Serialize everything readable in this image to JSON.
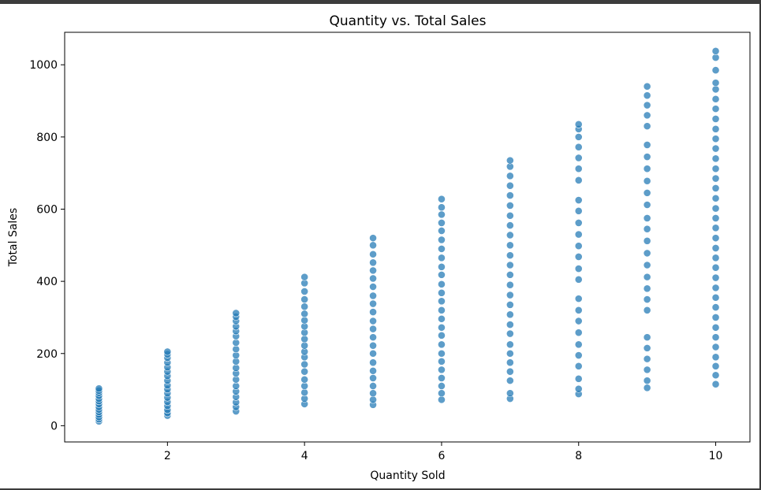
{
  "chart_data": {
    "type": "scatter",
    "title": "Quantity vs. Total Sales",
    "xlabel": "Quantity Sold",
    "ylabel": "Total Sales",
    "xlim": [
      0.5,
      10.5
    ],
    "ylim": [
      -45,
      1090
    ],
    "xticks": [
      2,
      4,
      6,
      8,
      10
    ],
    "yticks": [
      0,
      200,
      400,
      600,
      800,
      1000
    ],
    "grid": false,
    "marker_color": "#1f77b4",
    "series": [
      {
        "points": [
          {
            "x": 1,
            "y": 12
          },
          {
            "x": 1,
            "y": 18
          },
          {
            "x": 1,
            "y": 24
          },
          {
            "x": 1,
            "y": 31
          },
          {
            "x": 1,
            "y": 38
          },
          {
            "x": 1,
            "y": 45
          },
          {
            "x": 1,
            "y": 52
          },
          {
            "x": 1,
            "y": 60
          },
          {
            "x": 1,
            "y": 68
          },
          {
            "x": 1,
            "y": 75
          },
          {
            "x": 1,
            "y": 83
          },
          {
            "x": 1,
            "y": 91
          },
          {
            "x": 1,
            "y": 97
          },
          {
            "x": 1,
            "y": 103
          },
          {
            "x": 2,
            "y": 28
          },
          {
            "x": 2,
            "y": 35
          },
          {
            "x": 2,
            "y": 44
          },
          {
            "x": 2,
            "y": 55
          },
          {
            "x": 2,
            "y": 66
          },
          {
            "x": 2,
            "y": 78
          },
          {
            "x": 2,
            "y": 90
          },
          {
            "x": 2,
            "y": 101
          },
          {
            "x": 2,
            "y": 112
          },
          {
            "x": 2,
            "y": 125
          },
          {
            "x": 2,
            "y": 138
          },
          {
            "x": 2,
            "y": 150
          },
          {
            "x": 2,
            "y": 162
          },
          {
            "x": 2,
            "y": 175
          },
          {
            "x": 2,
            "y": 188
          },
          {
            "x": 2,
            "y": 198
          },
          {
            "x": 2,
            "y": 205
          },
          {
            "x": 3,
            "y": 40
          },
          {
            "x": 3,
            "y": 52
          },
          {
            "x": 3,
            "y": 65
          },
          {
            "x": 3,
            "y": 80
          },
          {
            "x": 3,
            "y": 95
          },
          {
            "x": 3,
            "y": 110
          },
          {
            "x": 3,
            "y": 128
          },
          {
            "x": 3,
            "y": 145
          },
          {
            "x": 3,
            "y": 160
          },
          {
            "x": 3,
            "y": 178
          },
          {
            "x": 3,
            "y": 195
          },
          {
            "x": 3,
            "y": 212
          },
          {
            "x": 3,
            "y": 230
          },
          {
            "x": 3,
            "y": 248
          },
          {
            "x": 3,
            "y": 262
          },
          {
            "x": 3,
            "y": 275
          },
          {
            "x": 3,
            "y": 290
          },
          {
            "x": 3,
            "y": 302
          },
          {
            "x": 3,
            "y": 312
          },
          {
            "x": 4,
            "y": 60
          },
          {
            "x": 4,
            "y": 75
          },
          {
            "x": 4,
            "y": 92
          },
          {
            "x": 4,
            "y": 110
          },
          {
            "x": 4,
            "y": 128
          },
          {
            "x": 4,
            "y": 150
          },
          {
            "x": 4,
            "y": 170
          },
          {
            "x": 4,
            "y": 190
          },
          {
            "x": 4,
            "y": 205
          },
          {
            "x": 4,
            "y": 222
          },
          {
            "x": 4,
            "y": 240
          },
          {
            "x": 4,
            "y": 258
          },
          {
            "x": 4,
            "y": 275
          },
          {
            "x": 4,
            "y": 292
          },
          {
            "x": 4,
            "y": 310
          },
          {
            "x": 4,
            "y": 330
          },
          {
            "x": 4,
            "y": 350
          },
          {
            "x": 4,
            "y": 372
          },
          {
            "x": 4,
            "y": 395
          },
          {
            "x": 4,
            "y": 412
          },
          {
            "x": 5,
            "y": 58
          },
          {
            "x": 5,
            "y": 72
          },
          {
            "x": 5,
            "y": 90
          },
          {
            "x": 5,
            "y": 110
          },
          {
            "x": 5,
            "y": 132
          },
          {
            "x": 5,
            "y": 152
          },
          {
            "x": 5,
            "y": 175
          },
          {
            "x": 5,
            "y": 200
          },
          {
            "x": 5,
            "y": 222
          },
          {
            "x": 5,
            "y": 245
          },
          {
            "x": 5,
            "y": 268
          },
          {
            "x": 5,
            "y": 290
          },
          {
            "x": 5,
            "y": 315
          },
          {
            "x": 5,
            "y": 338
          },
          {
            "x": 5,
            "y": 360
          },
          {
            "x": 5,
            "y": 385
          },
          {
            "x": 5,
            "y": 408
          },
          {
            "x": 5,
            "y": 430
          },
          {
            "x": 5,
            "y": 452
          },
          {
            "x": 5,
            "y": 475
          },
          {
            "x": 5,
            "y": 500
          },
          {
            "x": 5,
            "y": 520
          },
          {
            "x": 6,
            "y": 72
          },
          {
            "x": 6,
            "y": 90
          },
          {
            "x": 6,
            "y": 110
          },
          {
            "x": 6,
            "y": 132
          },
          {
            "x": 6,
            "y": 155
          },
          {
            "x": 6,
            "y": 178
          },
          {
            "x": 6,
            "y": 200
          },
          {
            "x": 6,
            "y": 225
          },
          {
            "x": 6,
            "y": 250
          },
          {
            "x": 6,
            "y": 272
          },
          {
            "x": 6,
            "y": 296
          },
          {
            "x": 6,
            "y": 320
          },
          {
            "x": 6,
            "y": 345
          },
          {
            "x": 6,
            "y": 368
          },
          {
            "x": 6,
            "y": 392
          },
          {
            "x": 6,
            "y": 418
          },
          {
            "x": 6,
            "y": 440
          },
          {
            "x": 6,
            "y": 465
          },
          {
            "x": 6,
            "y": 490
          },
          {
            "x": 6,
            "y": 515
          },
          {
            "x": 6,
            "y": 540
          },
          {
            "x": 6,
            "y": 562
          },
          {
            "x": 6,
            "y": 585
          },
          {
            "x": 6,
            "y": 605
          },
          {
            "x": 6,
            "y": 628
          },
          {
            "x": 7,
            "y": 75
          },
          {
            "x": 7,
            "y": 90
          },
          {
            "x": 7,
            "y": 125
          },
          {
            "x": 7,
            "y": 150
          },
          {
            "x": 7,
            "y": 175
          },
          {
            "x": 7,
            "y": 200
          },
          {
            "x": 7,
            "y": 225
          },
          {
            "x": 7,
            "y": 255
          },
          {
            "x": 7,
            "y": 280
          },
          {
            "x": 7,
            "y": 308
          },
          {
            "x": 7,
            "y": 335
          },
          {
            "x": 7,
            "y": 362
          },
          {
            "x": 7,
            "y": 390
          },
          {
            "x": 7,
            "y": 418
          },
          {
            "x": 7,
            "y": 445
          },
          {
            "x": 7,
            "y": 472
          },
          {
            "x": 7,
            "y": 500
          },
          {
            "x": 7,
            "y": 528
          },
          {
            "x": 7,
            "y": 555
          },
          {
            "x": 7,
            "y": 582
          },
          {
            "x": 7,
            "y": 610
          },
          {
            "x": 7,
            "y": 638
          },
          {
            "x": 7,
            "y": 665
          },
          {
            "x": 7,
            "y": 692
          },
          {
            "x": 7,
            "y": 718
          },
          {
            "x": 7,
            "y": 735
          },
          {
            "x": 8,
            "y": 88
          },
          {
            "x": 8,
            "y": 102
          },
          {
            "x": 8,
            "y": 130
          },
          {
            "x": 8,
            "y": 165
          },
          {
            "x": 8,
            "y": 195
          },
          {
            "x": 8,
            "y": 225
          },
          {
            "x": 8,
            "y": 258
          },
          {
            "x": 8,
            "y": 290
          },
          {
            "x": 8,
            "y": 320
          },
          {
            "x": 8,
            "y": 352
          },
          {
            "x": 8,
            "y": 405
          },
          {
            "x": 8,
            "y": 435
          },
          {
            "x": 8,
            "y": 468
          },
          {
            "x": 8,
            "y": 498
          },
          {
            "x": 8,
            "y": 530
          },
          {
            "x": 8,
            "y": 562
          },
          {
            "x": 8,
            "y": 595
          },
          {
            "x": 8,
            "y": 625
          },
          {
            "x": 8,
            "y": 680
          },
          {
            "x": 8,
            "y": 712
          },
          {
            "x": 8,
            "y": 742
          },
          {
            "x": 8,
            "y": 772
          },
          {
            "x": 8,
            "y": 800
          },
          {
            "x": 8,
            "y": 822
          },
          {
            "x": 8,
            "y": 835
          },
          {
            "x": 9,
            "y": 105
          },
          {
            "x": 9,
            "y": 125
          },
          {
            "x": 9,
            "y": 155
          },
          {
            "x": 9,
            "y": 185
          },
          {
            "x": 9,
            "y": 215
          },
          {
            "x": 9,
            "y": 245
          },
          {
            "x": 9,
            "y": 320
          },
          {
            "x": 9,
            "y": 350
          },
          {
            "x": 9,
            "y": 380
          },
          {
            "x": 9,
            "y": 412
          },
          {
            "x": 9,
            "y": 445
          },
          {
            "x": 9,
            "y": 478
          },
          {
            "x": 9,
            "y": 512
          },
          {
            "x": 9,
            "y": 545
          },
          {
            "x": 9,
            "y": 575
          },
          {
            "x": 9,
            "y": 612
          },
          {
            "x": 9,
            "y": 645
          },
          {
            "x": 9,
            "y": 678
          },
          {
            "x": 9,
            "y": 712
          },
          {
            "x": 9,
            "y": 745
          },
          {
            "x": 9,
            "y": 778
          },
          {
            "x": 9,
            "y": 830
          },
          {
            "x": 9,
            "y": 860
          },
          {
            "x": 9,
            "y": 888
          },
          {
            "x": 9,
            "y": 915
          },
          {
            "x": 9,
            "y": 940
          },
          {
            "x": 10,
            "y": 115
          },
          {
            "x": 10,
            "y": 140
          },
          {
            "x": 10,
            "y": 165
          },
          {
            "x": 10,
            "y": 190
          },
          {
            "x": 10,
            "y": 218
          },
          {
            "x": 10,
            "y": 245
          },
          {
            "x": 10,
            "y": 272
          },
          {
            "x": 10,
            "y": 300
          },
          {
            "x": 10,
            "y": 328
          },
          {
            "x": 10,
            "y": 355
          },
          {
            "x": 10,
            "y": 382
          },
          {
            "x": 10,
            "y": 410
          },
          {
            "x": 10,
            "y": 438
          },
          {
            "x": 10,
            "y": 465
          },
          {
            "x": 10,
            "y": 492
          },
          {
            "x": 10,
            "y": 520
          },
          {
            "x": 10,
            "y": 548
          },
          {
            "x": 10,
            "y": 575
          },
          {
            "x": 10,
            "y": 602
          },
          {
            "x": 10,
            "y": 630
          },
          {
            "x": 10,
            "y": 658
          },
          {
            "x": 10,
            "y": 685
          },
          {
            "x": 10,
            "y": 712
          },
          {
            "x": 10,
            "y": 740
          },
          {
            "x": 10,
            "y": 768
          },
          {
            "x": 10,
            "y": 795
          },
          {
            "x": 10,
            "y": 822
          },
          {
            "x": 10,
            "y": 850
          },
          {
            "x": 10,
            "y": 878
          },
          {
            "x": 10,
            "y": 905
          },
          {
            "x": 10,
            "y": 932
          },
          {
            "x": 10,
            "y": 950
          },
          {
            "x": 10,
            "y": 985
          },
          {
            "x": 10,
            "y": 1020
          },
          {
            "x": 10,
            "y": 1038
          }
        ]
      }
    ]
  }
}
